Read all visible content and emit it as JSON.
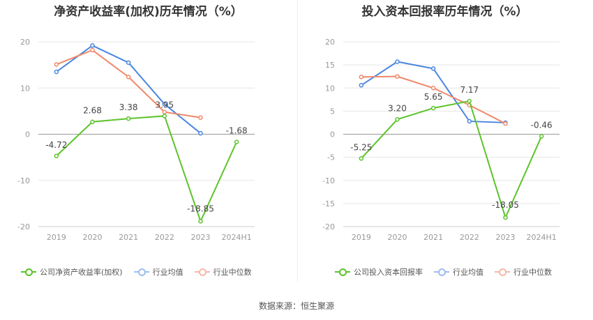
{
  "charts": [
    {
      "title": "净资产收益率(加权)历年情况（%）",
      "legend": [
        "公司净资产收益率(加权)",
        "行业均值",
        "行业中位数"
      ]
    },
    {
      "title": "投入资本回报率历年情况（%）",
      "legend": [
        "公司投入资本回报率",
        "行业均值",
        "行业中位数"
      ]
    }
  ],
  "source": "数据来源：恒生聚源",
  "colors": {
    "company": "#5cc42a",
    "avg": "#4a86e0",
    "median": "#f0876a",
    "grid": "#e5e5e5",
    "axis": "#999999"
  },
  "chart_data": [
    {
      "type": "line",
      "title": "净资产收益率(加权)历年情况（%）",
      "categories": [
        "2019",
        "2020",
        "2021",
        "2022",
        "2023",
        "2024H1"
      ],
      "ylim": [
        -20,
        20
      ],
      "yticks": [
        20,
        10,
        0,
        -10,
        -20
      ],
      "series": [
        {
          "name": "公司净资产收益率(加权)",
          "values": [
            -4.72,
            2.68,
            3.38,
            3.95,
            -18.85,
            -1.68
          ],
          "labels": [
            "-4.72",
            "2.68",
            "3.38",
            "3.95",
            "-18.85",
            "-1.68"
          ]
        },
        {
          "name": "行业均值",
          "values": [
            13.5,
            19.2,
            15.5,
            6.5,
            0.2,
            null
          ]
        },
        {
          "name": "行业中位数",
          "values": [
            15.1,
            18.2,
            12.4,
            4.8,
            3.6,
            null
          ]
        }
      ],
      "legend_position": "bottom"
    },
    {
      "type": "line",
      "title": "投入资本回报率历年情况（%）",
      "categories": [
        "2019",
        "2020",
        "2021",
        "2022",
        "2023",
        "2024H1"
      ],
      "ylim": [
        -20,
        20
      ],
      "yticks": [
        20,
        15,
        10,
        5,
        0,
        -5,
        -10,
        -15,
        -20
      ],
      "series": [
        {
          "name": "公司投入资本回报率",
          "values": [
            -5.25,
            3.2,
            5.65,
            7.17,
            -18.05,
            -0.46
          ],
          "labels": [
            "-5.25",
            "3.20",
            "5.65",
            "7.17",
            "-18.05",
            "-0.46"
          ]
        },
        {
          "name": "行业均值",
          "values": [
            10.6,
            15.7,
            14.2,
            2.8,
            2.5,
            null
          ]
        },
        {
          "name": "行业中位数",
          "values": [
            12.4,
            12.5,
            10.0,
            6.3,
            2.3,
            null
          ]
        }
      ],
      "legend_position": "bottom"
    }
  ]
}
